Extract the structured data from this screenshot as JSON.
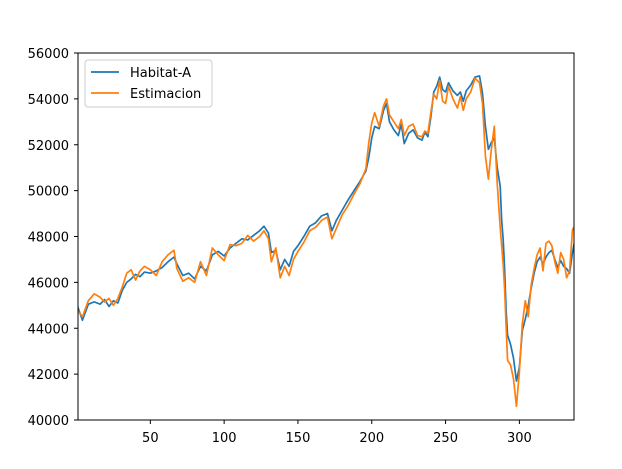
{
  "chart_data": {
    "type": "line",
    "title": "",
    "xlabel": "",
    "ylabel": "",
    "xlim": [
      1,
      337
    ],
    "ylim": [
      40000,
      56000
    ],
    "grid": false,
    "legend_position": "upper-left",
    "x_ticks": [
      50,
      100,
      150,
      200,
      250,
      300
    ],
    "y_ticks": [
      40000,
      42000,
      44000,
      46000,
      48000,
      50000,
      52000,
      54000,
      56000
    ],
    "y_tick_labels": [
      "40000",
      "42000",
      "44000",
      "46000",
      "48000",
      "50000",
      "52000",
      "54000",
      "56000"
    ],
    "series": [
      {
        "name": "Habitat-A",
        "color": "#1f77b4",
        "points": [
          [
            1,
            44900
          ],
          [
            4,
            44350
          ],
          [
            8,
            45050
          ],
          [
            12,
            45150
          ],
          [
            16,
            45050
          ],
          [
            19,
            45250
          ],
          [
            22,
            44950
          ],
          [
            25,
            45200
          ],
          [
            28,
            45100
          ],
          [
            31,
            45650
          ],
          [
            34,
            46000
          ],
          [
            37,
            46150
          ],
          [
            40,
            46350
          ],
          [
            43,
            46250
          ],
          [
            46,
            46450
          ],
          [
            50,
            46400
          ],
          [
            54,
            46500
          ],
          [
            58,
            46650
          ],
          [
            62,
            46900
          ],
          [
            66,
            47100
          ],
          [
            68,
            46800
          ],
          [
            72,
            46300
          ],
          [
            76,
            46400
          ],
          [
            80,
            46150
          ],
          [
            84,
            46700
          ],
          [
            88,
            46500
          ],
          [
            92,
            47200
          ],
          [
            96,
            47350
          ],
          [
            100,
            47150
          ],
          [
            104,
            47500
          ],
          [
            108,
            47700
          ],
          [
            112,
            47900
          ],
          [
            116,
            47850
          ],
          [
            120,
            48050
          ],
          [
            124,
            48250
          ],
          [
            127,
            48450
          ],
          [
            130,
            48150
          ],
          [
            132,
            47300
          ],
          [
            135,
            47400
          ],
          [
            138,
            46550
          ],
          [
            141,
            47000
          ],
          [
            144,
            46700
          ],
          [
            147,
            47350
          ],
          [
            150,
            47600
          ],
          [
            154,
            48000
          ],
          [
            158,
            48450
          ],
          [
            162,
            48600
          ],
          [
            166,
            48900
          ],
          [
            170,
            49000
          ],
          [
            173,
            48250
          ],
          [
            176,
            48700
          ],
          [
            180,
            49150
          ],
          [
            184,
            49600
          ],
          [
            188,
            50000
          ],
          [
            192,
            50400
          ],
          [
            196,
            50850
          ],
          [
            198,
            51450
          ],
          [
            200,
            52300
          ],
          [
            202,
            52800
          ],
          [
            205,
            52700
          ],
          [
            208,
            53500
          ],
          [
            210,
            53800
          ],
          [
            212,
            53000
          ],
          [
            215,
            52650
          ],
          [
            218,
            52400
          ],
          [
            220,
            52900
          ],
          [
            222,
            52050
          ],
          [
            225,
            52500
          ],
          [
            228,
            52650
          ],
          [
            231,
            52300
          ],
          [
            234,
            52200
          ],
          [
            236,
            52550
          ],
          [
            238,
            52350
          ],
          [
            240,
            53200
          ],
          [
            242,
            54300
          ],
          [
            244,
            54550
          ],
          [
            246,
            54950
          ],
          [
            248,
            54400
          ],
          [
            250,
            54300
          ],
          [
            252,
            54700
          ],
          [
            255,
            54350
          ],
          [
            258,
            54150
          ],
          [
            260,
            54300
          ],
          [
            262,
            53900
          ],
          [
            264,
            54350
          ],
          [
            267,
            54600
          ],
          [
            270,
            54950
          ],
          [
            273,
            55000
          ],
          [
            275,
            54250
          ],
          [
            277,
            52800
          ],
          [
            279,
            51800
          ],
          [
            281,
            52100
          ],
          [
            283,
            52300
          ],
          [
            285,
            51000
          ],
          [
            287,
            50200
          ],
          [
            288,
            48700
          ],
          [
            289,
            47900
          ],
          [
            290,
            46600
          ],
          [
            291,
            44800
          ],
          [
            292,
            43700
          ],
          [
            294,
            43300
          ],
          [
            296,
            42700
          ],
          [
            298,
            41700
          ],
          [
            300,
            42300
          ],
          [
            302,
            43900
          ],
          [
            304,
            44400
          ],
          [
            306,
            45000
          ],
          [
            308,
            45750
          ],
          [
            310,
            46400
          ],
          [
            312,
            46900
          ],
          [
            314,
            47100
          ],
          [
            316,
            46800
          ],
          [
            318,
            47100
          ],
          [
            320,
            47300
          ],
          [
            322,
            47400
          ],
          [
            324,
            47000
          ],
          [
            326,
            46650
          ],
          [
            328,
            46950
          ],
          [
            330,
            46700
          ],
          [
            332,
            46600
          ],
          [
            334,
            46400
          ],
          [
            336,
            47300
          ],
          [
            337,
            47650
          ]
        ]
      },
      {
        "name": "Estimacion",
        "color": "#ff7f0e",
        "points": [
          [
            1,
            44750
          ],
          [
            4,
            44500
          ],
          [
            8,
            45200
          ],
          [
            12,
            45500
          ],
          [
            16,
            45350
          ],
          [
            19,
            45150
          ],
          [
            22,
            45300
          ],
          [
            25,
            45000
          ],
          [
            28,
            45300
          ],
          [
            31,
            45800
          ],
          [
            34,
            46400
          ],
          [
            37,
            46550
          ],
          [
            40,
            46100
          ],
          [
            43,
            46500
          ],
          [
            46,
            46700
          ],
          [
            50,
            46550
          ],
          [
            54,
            46300
          ],
          [
            58,
            46900
          ],
          [
            62,
            47200
          ],
          [
            66,
            47400
          ],
          [
            68,
            46600
          ],
          [
            72,
            46050
          ],
          [
            76,
            46200
          ],
          [
            80,
            46000
          ],
          [
            84,
            46900
          ],
          [
            88,
            46300
          ],
          [
            92,
            47500
          ],
          [
            96,
            47200
          ],
          [
            100,
            46950
          ],
          [
            104,
            47650
          ],
          [
            108,
            47600
          ],
          [
            112,
            47700
          ],
          [
            116,
            48050
          ],
          [
            120,
            47800
          ],
          [
            124,
            48000
          ],
          [
            127,
            48250
          ],
          [
            130,
            47900
          ],
          [
            132,
            46900
          ],
          [
            135,
            47500
          ],
          [
            138,
            46200
          ],
          [
            141,
            46700
          ],
          [
            144,
            46300
          ],
          [
            147,
            47000
          ],
          [
            150,
            47350
          ],
          [
            154,
            47750
          ],
          [
            158,
            48250
          ],
          [
            162,
            48400
          ],
          [
            166,
            48700
          ],
          [
            170,
            48850
          ],
          [
            173,
            47900
          ],
          [
            176,
            48350
          ],
          [
            180,
            48950
          ],
          [
            184,
            49350
          ],
          [
            188,
            49850
          ],
          [
            192,
            50300
          ],
          [
            196,
            50950
          ],
          [
            198,
            52100
          ],
          [
            200,
            52950
          ],
          [
            202,
            53400
          ],
          [
            205,
            52800
          ],
          [
            208,
            53700
          ],
          [
            210,
            54000
          ],
          [
            212,
            53300
          ],
          [
            215,
            53000
          ],
          [
            218,
            52700
          ],
          [
            220,
            53100
          ],
          [
            222,
            52400
          ],
          [
            225,
            52800
          ],
          [
            228,
            52900
          ],
          [
            231,
            52400
          ],
          [
            234,
            52350
          ],
          [
            236,
            52600
          ],
          [
            238,
            52500
          ],
          [
            240,
            53400
          ],
          [
            242,
            54200
          ],
          [
            244,
            54000
          ],
          [
            246,
            54800
          ],
          [
            248,
            53900
          ],
          [
            250,
            53800
          ],
          [
            252,
            54550
          ],
          [
            255,
            54000
          ],
          [
            258,
            53600
          ],
          [
            260,
            54100
          ],
          [
            262,
            53500
          ],
          [
            264,
            54000
          ],
          [
            267,
            54300
          ],
          [
            270,
            54900
          ],
          [
            273,
            54700
          ],
          [
            275,
            53800
          ],
          [
            277,
            51500
          ],
          [
            279,
            50500
          ],
          [
            281,
            51800
          ],
          [
            283,
            52800
          ],
          [
            285,
            50300
          ],
          [
            287,
            48400
          ],
          [
            288,
            47600
          ],
          [
            289,
            46800
          ],
          [
            290,
            45700
          ],
          [
            291,
            44100
          ],
          [
            292,
            42600
          ],
          [
            294,
            42400
          ],
          [
            296,
            41800
          ],
          [
            298,
            40600
          ],
          [
            300,
            42100
          ],
          [
            302,
            44200
          ],
          [
            304,
            45200
          ],
          [
            306,
            44500
          ],
          [
            308,
            45900
          ],
          [
            310,
            46600
          ],
          [
            312,
            47200
          ],
          [
            314,
            47500
          ],
          [
            316,
            46500
          ],
          [
            318,
            47700
          ],
          [
            320,
            47800
          ],
          [
            322,
            47600
          ],
          [
            324,
            46900
          ],
          [
            326,
            46400
          ],
          [
            328,
            47300
          ],
          [
            330,
            47000
          ],
          [
            332,
            46200
          ],
          [
            334,
            46500
          ],
          [
            336,
            48300
          ],
          [
            337,
            48400
          ]
        ]
      }
    ]
  }
}
